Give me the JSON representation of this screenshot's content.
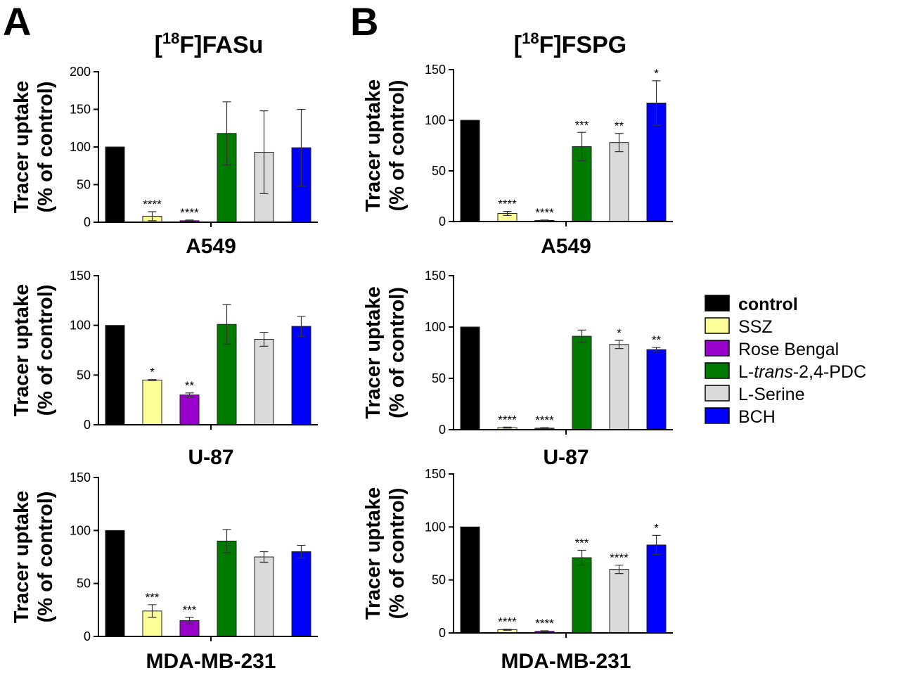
{
  "panels": {
    "A": {
      "letter": "A",
      "tracer_title": {
        "prefix": "[",
        "isotope": "18",
        "suffix": "F]FASu"
      }
    },
    "B": {
      "letter": "B",
      "tracer_title": {
        "prefix": "[",
        "isotope": "18",
        "suffix": "F]FSPG"
      }
    }
  },
  "legend": {
    "entries": [
      {
        "label": "control",
        "color": "#000000"
      },
      {
        "label": "SSZ",
        "color": "#ffff99"
      },
      {
        "label": "Rose Bengal",
        "color": "#9900cc"
      },
      {
        "label_parts": [
          "L-",
          "trans",
          "-2,4-PDC"
        ],
        "color": "#007a00"
      },
      {
        "label": "L-Serine",
        "color": "#d9d9d9"
      },
      {
        "label": "BCH",
        "color": "#0000ff"
      }
    ]
  },
  "chart_data": [
    {
      "type": "bar",
      "panel": "A",
      "tracer": "[18F]FASu",
      "xlabel": "A549",
      "ylabel": [
        "Tracer uptake",
        "(% of control)"
      ],
      "ylim": [
        0,
        200
      ],
      "yticks": [
        0,
        50,
        100,
        150,
        200
      ],
      "categories": [
        "control",
        "SSZ",
        "Rose Bengal",
        "L-trans-2,4-PDC",
        "L-Serine",
        "BCH"
      ],
      "values": [
        100,
        8,
        2,
        118,
        93,
        99
      ],
      "errors": [
        0,
        6,
        1,
        42,
        55,
        51
      ],
      "significance": [
        "",
        "****",
        "****",
        "",
        "",
        ""
      ]
    },
    {
      "type": "bar",
      "panel": "A",
      "tracer": "[18F]FASu",
      "xlabel": "U-87",
      "ylabel": [
        "Tracer uptake",
        "(% of control)"
      ],
      "ylim": [
        0,
        150
      ],
      "yticks": [
        0,
        50,
        100,
        150
      ],
      "categories": [
        "control",
        "SSZ",
        "Rose Bengal",
        "L-trans-2,4-PDC",
        "L-Serine",
        "BCH"
      ],
      "values": [
        100,
        45,
        30,
        101,
        86,
        99
      ],
      "errors": [
        0,
        0.5,
        2,
        20,
        7,
        10
      ],
      "significance": [
        "",
        "*",
        "**",
        "",
        "",
        ""
      ]
    },
    {
      "type": "bar",
      "panel": "A",
      "tracer": "[18F]FASu",
      "xlabel": "MDA-MB-231",
      "ylabel": [
        "Tracer uptake",
        "(% of control)"
      ],
      "ylim": [
        0,
        150
      ],
      "yticks": [
        0,
        50,
        100,
        150
      ],
      "categories": [
        "control",
        "SSZ",
        "Rose Bengal",
        "L-trans-2,4-PDC",
        "L-Serine",
        "BCH"
      ],
      "values": [
        100,
        24,
        15,
        90,
        75,
        80
      ],
      "errors": [
        0,
        6,
        3,
        11,
        5,
        6
      ],
      "significance": [
        "",
        "***",
        "***",
        "",
        "",
        ""
      ]
    },
    {
      "type": "bar",
      "panel": "B",
      "tracer": "[18F]FSPG",
      "xlabel": "A549",
      "ylabel": [
        "Tracer uptake",
        "(% of control)"
      ],
      "ylim": [
        0,
        150
      ],
      "yticks": [
        0,
        50,
        100,
        150
      ],
      "categories": [
        "control",
        "SSZ",
        "Rose Bengal",
        "L-trans-2,4-PDC",
        "L-Serine",
        "BCH"
      ],
      "values": [
        100,
        8,
        1,
        74,
        78,
        117
      ],
      "errors": [
        0,
        2,
        0.5,
        14,
        9,
        22
      ],
      "significance": [
        "",
        "****",
        "****",
        "***",
        "**",
        "*"
      ]
    },
    {
      "type": "bar",
      "panel": "B",
      "tracer": "[18F]FSPG",
      "xlabel": "U-87",
      "ylabel": [
        "Tracer uptake",
        "(% of control)"
      ],
      "ylim": [
        0,
        150
      ],
      "yticks": [
        0,
        50,
        100,
        150
      ],
      "categories": [
        "control",
        "SSZ",
        "Rose Bengal",
        "L-trans-2,4-PDC",
        "L-Serine",
        "BCH"
      ],
      "values": [
        100,
        2,
        1.5,
        91,
        83,
        78
      ],
      "errors": [
        0,
        0.5,
        0.5,
        6,
        4,
        2
      ],
      "significance": [
        "",
        "****",
        "****",
        "",
        "*",
        "**"
      ]
    },
    {
      "type": "bar",
      "panel": "B",
      "tracer": "[18F]FSPG",
      "xlabel": "MDA-MB-231",
      "ylabel": [
        "Tracer uptake",
        "(% of control)"
      ],
      "ylim": [
        0,
        150
      ],
      "yticks": [
        0,
        50,
        100,
        150
      ],
      "categories": [
        "control",
        "SSZ",
        "Rose Bengal",
        "L-trans-2,4-PDC",
        "L-Serine",
        "BCH"
      ],
      "values": [
        100,
        3,
        1.5,
        71,
        60,
        83
      ],
      "errors": [
        0,
        0.5,
        0.5,
        7,
        4,
        9
      ],
      "significance": [
        "",
        "****",
        "****",
        "***",
        "****",
        "*"
      ]
    }
  ]
}
